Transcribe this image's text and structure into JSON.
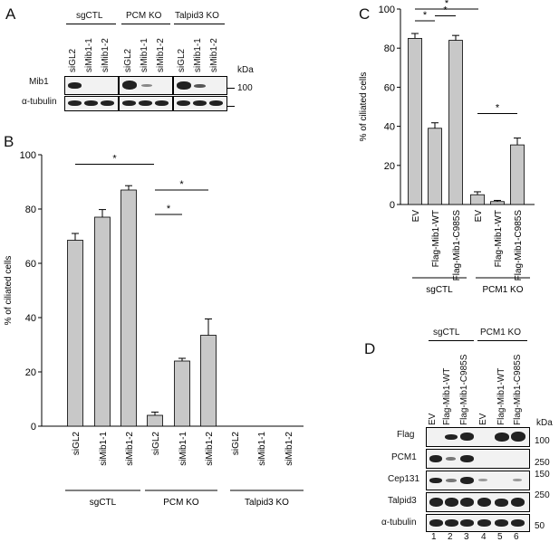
{
  "panel_letters": {
    "a": "A",
    "b": "B",
    "c": "C",
    "d": "D"
  },
  "panel_a": {
    "groups": [
      "sgCTL",
      "PCM KO",
      "Talpid3 KO"
    ],
    "lanes": [
      "siGL2",
      "siMib1-1",
      "siMib1-2",
      "siGL2",
      "siMib1-1",
      "siMib1-2",
      "siGL2",
      "siMib1-1",
      "siMib1-2"
    ],
    "rows": [
      "Mib1",
      "α-tubulin"
    ],
    "kda_label": "kDa",
    "marker": "100"
  },
  "panel_d": {
    "groups": [
      "sgCTL",
      "PCM1 KO"
    ],
    "lanes": [
      "EV",
      "Flag-Mib1-WT",
      "Flag-Mib1-C985S",
      "EV",
      "Flag-Mib1-WT",
      "Flag-Mib1-C985S"
    ],
    "lane_numbers": [
      "1",
      "2",
      "3",
      "4",
      "5",
      "6"
    ],
    "rows": [
      "Flag",
      "PCM1",
      "Cep131",
      "Talpid3",
      "α-tubulin"
    ],
    "kda_label": "kDa",
    "markers": [
      "100",
      "250",
      "150",
      "250",
      "50"
    ]
  },
  "chart_data": [
    {
      "type": "bar",
      "panel": "B",
      "ylabel": "% of ciliated cells",
      "ylim": [
        0,
        100
      ],
      "yticks": [
        "0",
        "20",
        "40",
        "60",
        "80",
        "100"
      ],
      "categories": [
        "siGL2",
        "siMib1-1",
        "siMib1-2",
        "siGL2",
        "siMib1-1",
        "siMib1-2",
        "siGL2",
        "siMib1-1",
        "siMib1-2"
      ],
      "values": [
        68.5,
        77,
        87,
        4,
        24,
        33.5,
        0,
        0,
        0
      ],
      "errors": [
        2.5,
        2.8,
        1.6,
        1.2,
        1.0,
        6.0,
        0,
        0,
        0
      ],
      "groups": [
        "sgCTL",
        "PCM KO",
        "Talpid3 KO"
      ],
      "significance": [
        "*",
        "*",
        "*"
      ],
      "grid": false
    },
    {
      "type": "bar",
      "panel": "C",
      "ylabel": "% of ciliated cells",
      "ylim": [
        0,
        100
      ],
      "yticks": [
        "0",
        "20",
        "40",
        "60",
        "80",
        "100"
      ],
      "categories": [
        "EV",
        "Flag-Mib1-WT",
        "Flag-Mib1-C985S",
        "EV",
        "Flag-Mib1-WT",
        "Flag-Mib1-C985S"
      ],
      "values": [
        85,
        39,
        84,
        5,
        1.5,
        30.5
      ],
      "errors": [
        2.5,
        2.8,
        2.5,
        1.5,
        0.6,
        3.5
      ],
      "groups": [
        "sgCTL",
        "PCM1 KO"
      ],
      "significance": [
        "*",
        "*",
        "*",
        "*"
      ],
      "grid": false
    }
  ]
}
